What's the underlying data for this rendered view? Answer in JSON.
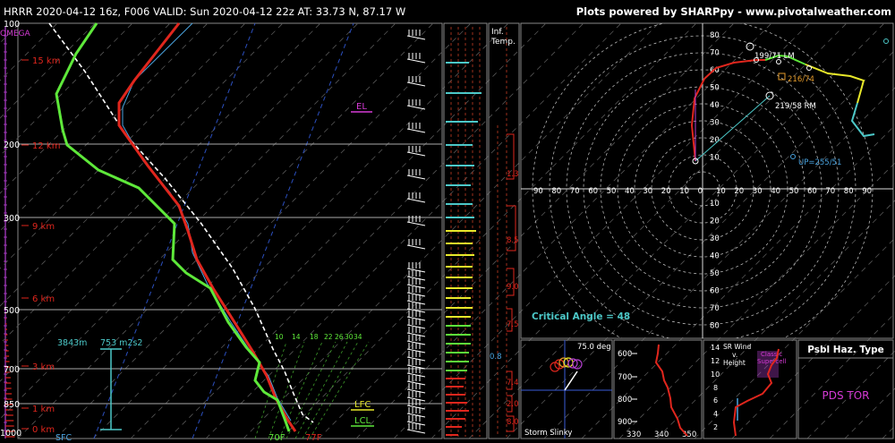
{
  "header": {
    "title": "HRRR 2020-04-12 16z, F006   VALID: Sun 2020-04-12 22z   AT: 33.73 N, 87.17 W",
    "credit": "Plots powered by SHARPpy - www.pivotalweather.com"
  },
  "skewt": {
    "omega_label": "OMEGA",
    "pressure_labels": [
      "100",
      "200",
      "300",
      "500",
      "700",
      "850",
      "1000"
    ],
    "height_labels": [
      "15 km",
      "12 km",
      "9 km",
      "6 km",
      "3 km",
      "1 km",
      "0 km"
    ],
    "el_label": "EL",
    "lfc_label": "LFC",
    "lcl_label": "LCL",
    "sfc_label": "SFC",
    "sfc_dewpoint": "70F",
    "sfc_temp": "77F",
    "eff_inflow_top": "3843m",
    "eff_inflow_srh": "753 m2s2",
    "mixing_ratio_labels": [
      "10",
      "14",
      "18",
      "22",
      "26",
      "30",
      "34"
    ],
    "colors": {
      "temp": "#e0261d",
      "dewpoint": "#5ee83a",
      "virtual": "#4aa3df",
      "parcel": "#ffffff",
      "grid_red": "#c23b22",
      "omega": "#b43fd0"
    }
  },
  "inflow": {
    "title_line1": "Inf.",
    "title_line2": "Temp.",
    "values": [
      "1.3",
      "8.5",
      "9.0",
      "7.5",
      "7.4",
      "2.0",
      "8.0",
      "0.8"
    ]
  },
  "hodograph": {
    "axis_labels_y": [
      "80",
      "70",
      "60",
      "50",
      "40",
      "30",
      "20",
      "10"
    ],
    "axis_labels_y_neg": [
      "10",
      "20",
      "30",
      "40",
      "50",
      "60",
      "70",
      "80"
    ],
    "axis_labels_x": [
      "90",
      "80",
      "70",
      "60",
      "50",
      "40",
      "30",
      "20",
      "10",
      "0",
      "10",
      "20",
      "30",
      "40",
      "50",
      "60",
      "70",
      "80",
      "90"
    ],
    "labels": {
      "lm": "199/71 LM",
      "mean": "216/74",
      "rm": "219/58 RM",
      "up": "UP=255/51"
    },
    "critical_angle": "Critical Angle = 48"
  },
  "storm_slinky": {
    "angle": "75.0 deg",
    "label": "Storm Slinky"
  },
  "theta_e": {
    "y_labels": [
      "600",
      "700",
      "800",
      "900"
    ],
    "x_labels": [
      "330",
      "340",
      "350"
    ]
  },
  "sr_wind": {
    "title_line1": "SR Wind",
    "title_line2": "v.",
    "title_line3": "Height",
    "classic_line1": "Classic",
    "classic_line2": "Supercell",
    "y_labels": [
      "14",
      "12",
      "10",
      "8",
      "6",
      "4",
      "2"
    ]
  },
  "hazard": {
    "title": "Psbl Haz. Type",
    "value": "PDS TOR",
    "value_color": "#d63ad6"
  }
}
